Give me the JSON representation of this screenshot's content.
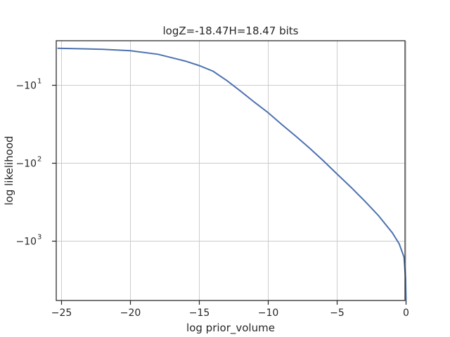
{
  "chart_data": {
    "type": "line",
    "title": "logZ=-18.47H=18.47 bits",
    "xlabel": "log prior_volume",
    "ylabel": "log likelihood",
    "xlim": [
      -25.3,
      0
    ],
    "yscale": "symlog",
    "ylim": [
      -8000,
      -2.5
    ],
    "x_ticks": [
      -25,
      -20,
      -15,
      -10,
      -5,
      0
    ],
    "x_tick_labels": [
      "−25",
      "−20",
      "−15",
      "−10",
      "−5",
      "0"
    ],
    "y_ticks": [
      -10,
      -100,
      -1000
    ],
    "y_tick_labels": [
      "−10",
      "−10",
      "−10"
    ],
    "y_tick_exponents": [
      "1",
      "2",
      "3"
    ],
    "grid": true,
    "series": [
      {
        "color": "#4c72b0",
        "x": [
          -25.3,
          -22,
          -20,
          -18,
          -16,
          -15,
          -14,
          -13,
          -12,
          -11,
          -10,
          -9,
          -8,
          -7,
          -6,
          -5,
          -4,
          -3,
          -2,
          -1,
          -0.5,
          -0.15,
          -0.03,
          0
        ],
        "y": [
          -3.35,
          -3.45,
          -3.6,
          -4.0,
          -4.9,
          -5.6,
          -6.6,
          -8.7,
          -11.9,
          -16.5,
          -22.5,
          -32,
          -45,
          -64,
          -93,
          -138,
          -203,
          -305,
          -470,
          -780,
          -1080,
          -1600,
          -3100,
          -6000
        ]
      }
    ]
  }
}
